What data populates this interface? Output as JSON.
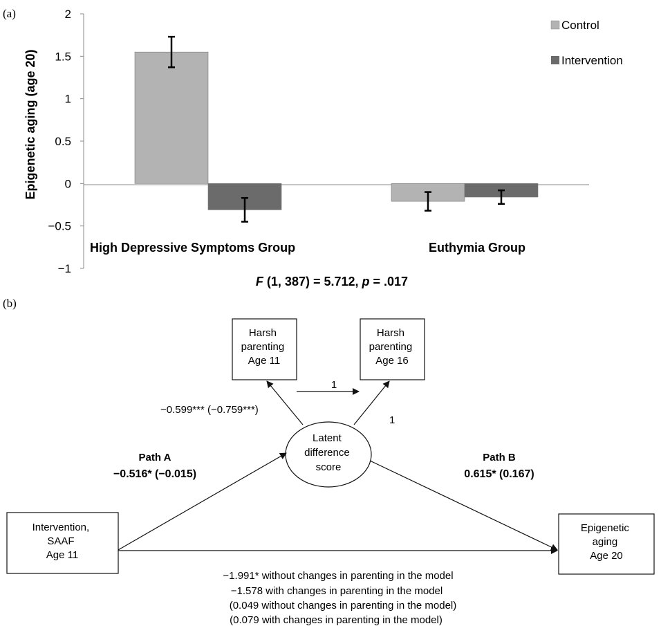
{
  "panel_a": {
    "label": "(a)",
    "ylabel": "Epigenetic aging (age 20)",
    "yticks": [
      "2",
      "1.5",
      "1",
      "0.5",
      "0",
      "−0.5",
      "−1"
    ],
    "stat": {
      "f": "F",
      "df": " (1, 387) = 5.712, ",
      "p": "p",
      "pval": " = .017"
    }
  },
  "chart_data": {
    "type": "bar",
    "categories": [
      "High Depressive Symptoms Group",
      "Euthymia Group"
    ],
    "series": [
      {
        "name": "Control",
        "values": [
          1.55,
          -0.21
        ],
        "error": [
          0.18,
          0.11
        ],
        "color": "#b3b3b3"
      },
      {
        "name": "Intervention",
        "values": [
          -0.31,
          -0.16
        ],
        "error": [
          0.14,
          0.08
        ],
        "color": "#6b6b6b"
      }
    ],
    "ylim": [
      -1,
      2
    ],
    "ylabel": "Epigenetic aging (age 20)",
    "legend": "top-right",
    "grid": false
  },
  "panel_b": {
    "label": "(b)",
    "nodes": {
      "harsh11": [
        "Harsh",
        "parenting",
        "Age 11"
      ],
      "harsh16": [
        "Harsh",
        "parenting",
        "Age 16"
      ],
      "latent": [
        "Latent",
        "difference",
        "score"
      ],
      "intervention": [
        "Intervention,",
        "SAAF",
        "Age 11"
      ],
      "epigenetic": [
        "Epigenetic",
        "aging",
        "Age 20"
      ]
    },
    "arrow_labels": {
      "h11_h16": "1",
      "latent_h16": "1",
      "latent_h11": "−0.599*** (−0.759***)"
    },
    "path_a": {
      "title": "Path A",
      "coef": "−0.516* (−0.015)"
    },
    "path_b": {
      "title": "Path B",
      "coef": "0.615* (0.167)"
    },
    "direct_notes": [
      "−1.991* without changes in parenting in the model",
      "−1.578 with changes in parenting in the model",
      "(0.049 without changes in parenting in the model)",
      "(0.079 with changes in parenting in the model)"
    ]
  }
}
